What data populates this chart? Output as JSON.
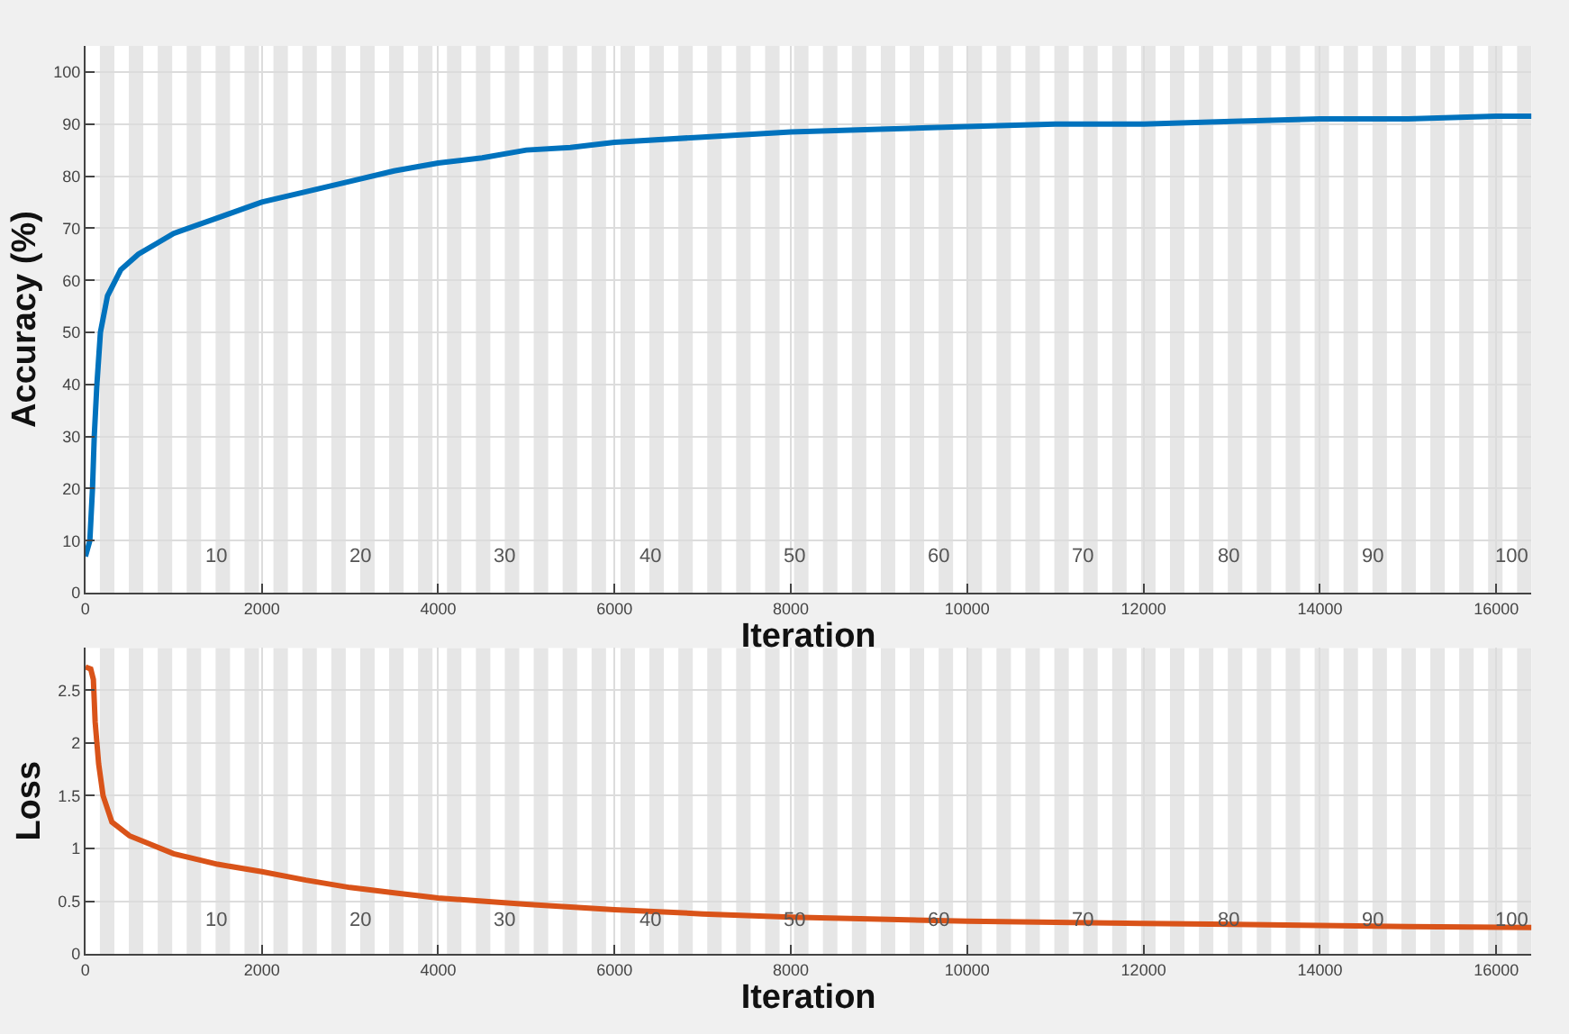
{
  "chart_data": [
    {
      "type": "line",
      "xlabel": "Iteration",
      "ylabel": "Accuracy (%)",
      "xlim": [
        0,
        16400
      ],
      "ylim": [
        0,
        105
      ],
      "xticks": [
        0,
        2000,
        4000,
        6000,
        8000,
        10000,
        12000,
        14000,
        16000
      ],
      "yticks": [
        0,
        10,
        20,
        30,
        40,
        50,
        60,
        70,
        80,
        90,
        100
      ],
      "grid": true,
      "series": [
        {
          "color": "#0072bd",
          "x": [
            0,
            50,
            80,
            100,
            130,
            170,
            250,
            400,
            600,
            800,
            1000,
            1500,
            2000,
            2500,
            3000,
            3500,
            4000,
            4500,
            5000,
            5500,
            6000,
            7000,
            8000,
            9000,
            10000,
            11000,
            12000,
            13000,
            14000,
            15000,
            16000,
            16400
          ],
          "values": [
            7,
            10,
            20,
            30,
            40,
            50,
            57,
            62,
            65,
            67,
            69,
            72,
            75,
            77,
            79,
            81,
            82.5,
            83.5,
            85,
            85.5,
            86.5,
            87.5,
            88.5,
            89,
            89.5,
            90,
            90,
            90.5,
            91,
            91,
            91.5,
            91.5
          ]
        }
      ],
      "annotations": [
        {
          "text": "10",
          "x": 1640,
          "y": 4
        },
        {
          "text": "20",
          "x": 3280,
          "y": 4
        },
        {
          "text": "30",
          "x": 4920,
          "y": 4
        },
        {
          "text": "40",
          "x": 6560,
          "y": 4
        },
        {
          "text": "50",
          "x": 8200,
          "y": 4
        },
        {
          "text": "60",
          "x": 9840,
          "y": 4
        },
        {
          "text": "70",
          "x": 11480,
          "y": 4
        },
        {
          "text": "80",
          "x": 13120,
          "y": 4
        },
        {
          "text": "90",
          "x": 14760,
          "y": 4
        },
        {
          "text": "100",
          "x": 16400,
          "y": 4
        }
      ],
      "bands": [
        {
          "axis": "x",
          "from": 164,
          "to": 328
        },
        {
          "axis": "x",
          "from": 492,
          "to": 656
        },
        {
          "axis": "x",
          "from": 820,
          "to": 984
        },
        {
          "axis": "x",
          "from": 1148,
          "to": 1312
        },
        {
          "axis": "x",
          "from": 1476,
          "to": 1640
        },
        {
          "axis": "x",
          "from": 1804,
          "to": 1968
        },
        {
          "axis": "x",
          "from": 2132,
          "to": 2296
        },
        {
          "axis": "x",
          "from": 2460,
          "to": 2624
        },
        {
          "axis": "x",
          "from": 2788,
          "to": 2952
        },
        {
          "axis": "x",
          "from": 3116,
          "to": 3280
        },
        {
          "axis": "x",
          "from": 3444,
          "to": 3608
        },
        {
          "axis": "x",
          "from": 3772,
          "to": 3936
        },
        {
          "axis": "x",
          "from": 4100,
          "to": 4264
        },
        {
          "axis": "x",
          "from": 4428,
          "to": 4592
        },
        {
          "axis": "x",
          "from": 4756,
          "to": 4920
        },
        {
          "axis": "x",
          "from": 5084,
          "to": 5248
        },
        {
          "axis": "x",
          "from": 5412,
          "to": 5576
        },
        {
          "axis": "x",
          "from": 5740,
          "to": 5904
        },
        {
          "axis": "x",
          "from": 6068,
          "to": 6232
        },
        {
          "axis": "x",
          "from": 6396,
          "to": 6560
        },
        {
          "axis": "x",
          "from": 6724,
          "to": 6888
        },
        {
          "axis": "x",
          "from": 7052,
          "to": 7216
        },
        {
          "axis": "x",
          "from": 7380,
          "to": 7544
        },
        {
          "axis": "x",
          "from": 7708,
          "to": 7872
        },
        {
          "axis": "x",
          "from": 8036,
          "to": 8200
        },
        {
          "axis": "x",
          "from": 8364,
          "to": 8528
        },
        {
          "axis": "x",
          "from": 8692,
          "to": 8856
        },
        {
          "axis": "x",
          "from": 9020,
          "to": 9184
        },
        {
          "axis": "x",
          "from": 9348,
          "to": 9512
        },
        {
          "axis": "x",
          "from": 9676,
          "to": 9840
        },
        {
          "axis": "x",
          "from": 10004,
          "to": 10168
        },
        {
          "axis": "x",
          "from": 10332,
          "to": 10496
        },
        {
          "axis": "x",
          "from": 10660,
          "to": 10824
        },
        {
          "axis": "x",
          "from": 10988,
          "to": 11152
        },
        {
          "axis": "x",
          "from": 11316,
          "to": 11480
        },
        {
          "axis": "x",
          "from": 11644,
          "to": 11808
        },
        {
          "axis": "x",
          "from": 11972,
          "to": 12136
        },
        {
          "axis": "x",
          "from": 12300,
          "to": 12464
        },
        {
          "axis": "x",
          "from": 12628,
          "to": 12792
        },
        {
          "axis": "x",
          "from": 12956,
          "to": 13120
        },
        {
          "axis": "x",
          "from": 13284,
          "to": 13448
        },
        {
          "axis": "x",
          "from": 13612,
          "to": 13776
        },
        {
          "axis": "x",
          "from": 13940,
          "to": 14104
        },
        {
          "axis": "x",
          "from": 14268,
          "to": 14432
        },
        {
          "axis": "x",
          "from": 14596,
          "to": 14760
        },
        {
          "axis": "x",
          "from": 14924,
          "to": 15088
        },
        {
          "axis": "x",
          "from": 15252,
          "to": 15416
        },
        {
          "axis": "x",
          "from": 15580,
          "to": 15744
        },
        {
          "axis": "x",
          "from": 15908,
          "to": 16072
        },
        {
          "axis": "x",
          "from": 16236,
          "to": 16400
        }
      ]
    },
    {
      "type": "line",
      "xlabel": "Iteration",
      "ylabel": "Loss",
      "xlim": [
        0,
        16400
      ],
      "ylim": [
        0,
        2.9
      ],
      "xticks": [
        0,
        2000,
        4000,
        6000,
        8000,
        10000,
        12000,
        14000,
        16000
      ],
      "yticks": [
        0,
        0.5,
        1,
        1.5,
        2,
        2.5
      ],
      "grid": true,
      "series": [
        {
          "color": "#d95319",
          "x": [
            0,
            60,
            90,
            110,
            150,
            200,
            300,
            500,
            1000,
            1500,
            2000,
            2500,
            3000,
            3500,
            4000,
            5000,
            6000,
            7000,
            8000,
            9000,
            10000,
            11000,
            12000,
            13000,
            14000,
            15000,
            16400
          ],
          "values": [
            2.72,
            2.7,
            2.6,
            2.2,
            1.8,
            1.5,
            1.25,
            1.12,
            0.95,
            0.85,
            0.78,
            0.7,
            0.63,
            0.58,
            0.53,
            0.47,
            0.42,
            0.38,
            0.35,
            0.33,
            0.31,
            0.3,
            0.29,
            0.28,
            0.27,
            0.26,
            0.25
          ]
        }
      ],
      "annotations": [
        {
          "text": "10",
          "x": 1640,
          "y": 0.18
        },
        {
          "text": "20",
          "x": 3280,
          "y": 0.18
        },
        {
          "text": "30",
          "x": 4920,
          "y": 0.18
        },
        {
          "text": "40",
          "x": 6560,
          "y": 0.18
        },
        {
          "text": "50",
          "x": 8200,
          "y": 0.18
        },
        {
          "text": "60",
          "x": 9840,
          "y": 0.18
        },
        {
          "text": "70",
          "x": 11480,
          "y": 0.18
        },
        {
          "text": "80",
          "x": 13120,
          "y": 0.18
        },
        {
          "text": "90",
          "x": 14760,
          "y": 0.18
        },
        {
          "text": "100",
          "x": 16400,
          "y": 0.18
        }
      ],
      "bands": [
        {
          "axis": "x",
          "from": 164,
          "to": 328
        },
        {
          "axis": "x",
          "from": 492,
          "to": 656
        },
        {
          "axis": "x",
          "from": 820,
          "to": 984
        },
        {
          "axis": "x",
          "from": 1148,
          "to": 1312
        },
        {
          "axis": "x",
          "from": 1476,
          "to": 1640
        },
        {
          "axis": "x",
          "from": 1804,
          "to": 1968
        },
        {
          "axis": "x",
          "from": 2132,
          "to": 2296
        },
        {
          "axis": "x",
          "from": 2460,
          "to": 2624
        },
        {
          "axis": "x",
          "from": 2788,
          "to": 2952
        },
        {
          "axis": "x",
          "from": 3116,
          "to": 3280
        },
        {
          "axis": "x",
          "from": 3444,
          "to": 3608
        },
        {
          "axis": "x",
          "from": 3772,
          "to": 3936
        },
        {
          "axis": "x",
          "from": 4100,
          "to": 4264
        },
        {
          "axis": "x",
          "from": 4428,
          "to": 4592
        },
        {
          "axis": "x",
          "from": 4756,
          "to": 4920
        },
        {
          "axis": "x",
          "from": 5084,
          "to": 5248
        },
        {
          "axis": "x",
          "from": 5412,
          "to": 5576
        },
        {
          "axis": "x",
          "from": 5740,
          "to": 5904
        },
        {
          "axis": "x",
          "from": 6068,
          "to": 6232
        },
        {
          "axis": "x",
          "from": 6396,
          "to": 6560
        },
        {
          "axis": "x",
          "from": 6724,
          "to": 6888
        },
        {
          "axis": "x",
          "from": 7052,
          "to": 7216
        },
        {
          "axis": "x",
          "from": 7380,
          "to": 7544
        },
        {
          "axis": "x",
          "from": 7708,
          "to": 7872
        },
        {
          "axis": "x",
          "from": 8036,
          "to": 8200
        },
        {
          "axis": "x",
          "from": 8364,
          "to": 8528
        },
        {
          "axis": "x",
          "from": 8692,
          "to": 8856
        },
        {
          "axis": "x",
          "from": 9020,
          "to": 9184
        },
        {
          "axis": "x",
          "from": 9348,
          "to": 9512
        },
        {
          "axis": "x",
          "from": 9676,
          "to": 9840
        },
        {
          "axis": "x",
          "from": 10004,
          "to": 10168
        },
        {
          "axis": "x",
          "from": 10332,
          "to": 10496
        },
        {
          "axis": "x",
          "from": 10660,
          "to": 10824
        },
        {
          "axis": "x",
          "from": 10988,
          "to": 11152
        },
        {
          "axis": "x",
          "from": 11316,
          "to": 11480
        },
        {
          "axis": "x",
          "from": 11644,
          "to": 11808
        },
        {
          "axis": "x",
          "from": 11972,
          "to": 12136
        },
        {
          "axis": "x",
          "from": 12300,
          "to": 12464
        },
        {
          "axis": "x",
          "from": 12628,
          "to": 12792
        },
        {
          "axis": "x",
          "from": 12956,
          "to": 13120
        },
        {
          "axis": "x",
          "from": 13284,
          "to": 13448
        },
        {
          "axis": "x",
          "from": 13612,
          "to": 13776
        },
        {
          "axis": "x",
          "from": 13940,
          "to": 14104
        },
        {
          "axis": "x",
          "from": 14268,
          "to": 14432
        },
        {
          "axis": "x",
          "from": 14596,
          "to": 14760
        },
        {
          "axis": "x",
          "from": 14924,
          "to": 15088
        },
        {
          "axis": "x",
          "from": 15252,
          "to": 15416
        },
        {
          "axis": "x",
          "from": 15580,
          "to": 15744
        },
        {
          "axis": "x",
          "from": 15908,
          "to": 16072
        },
        {
          "axis": "x",
          "from": 16236,
          "to": 16400
        }
      ]
    }
  ]
}
